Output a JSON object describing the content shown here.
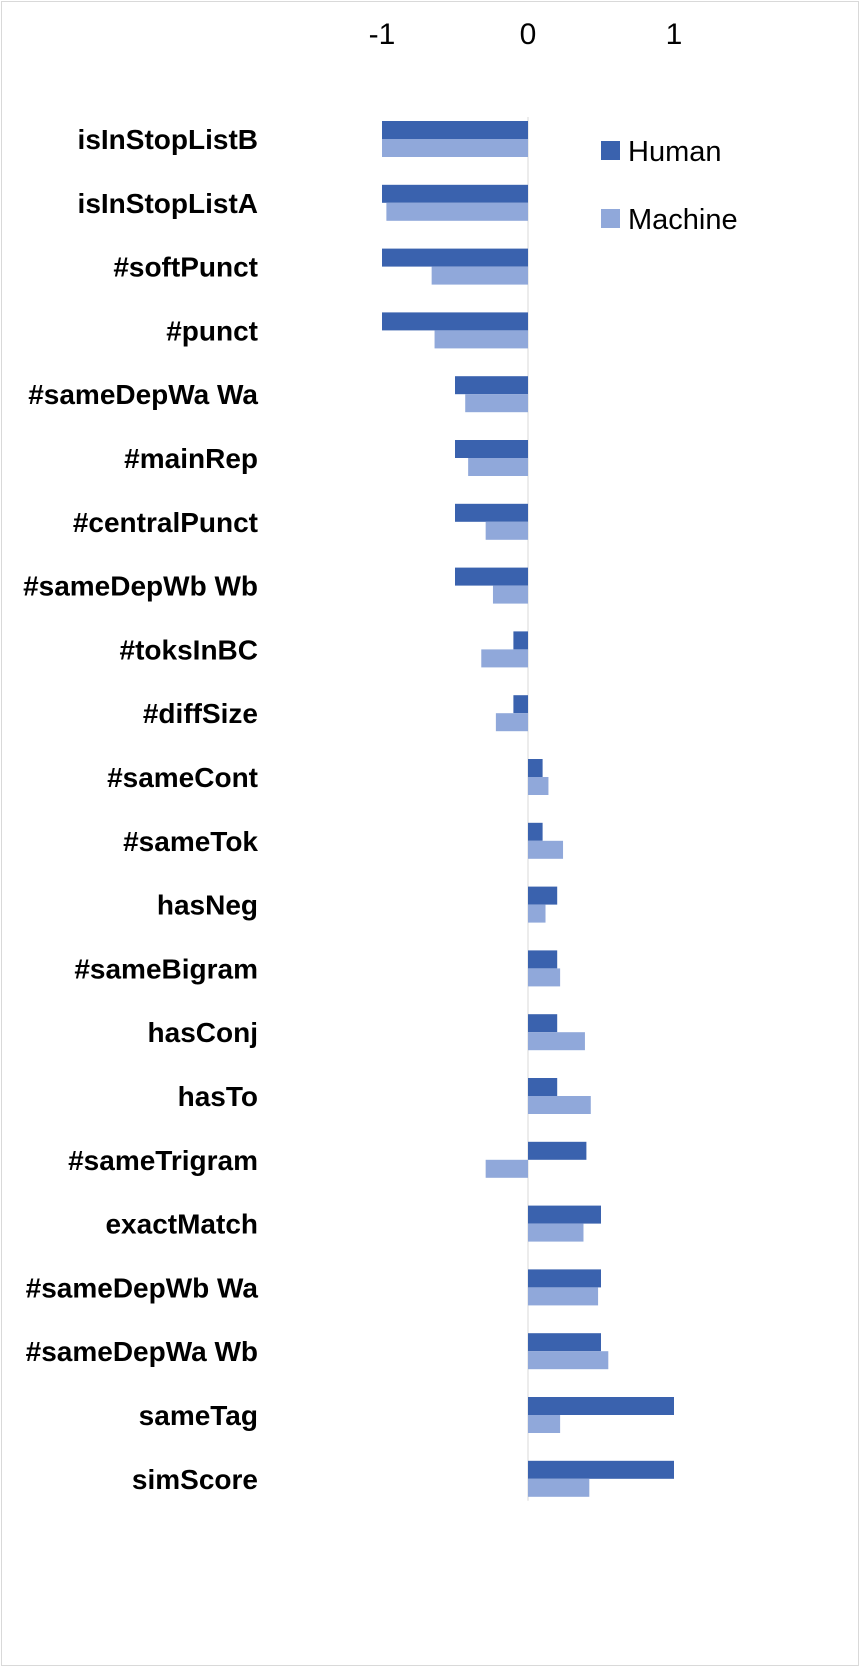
{
  "chart_data": {
    "type": "bar",
    "orientation": "horizontal",
    "xlim": [
      -1.05,
      1.05
    ],
    "xticks": [
      {
        "value": -1,
        "label": "-1"
      },
      {
        "value": 0,
        "label": "0"
      },
      {
        "value": 1,
        "label": "1"
      }
    ],
    "x_axis_position": "top",
    "grid": false,
    "legend_position": "top-right",
    "categories": [
      "isInStopListB",
      "isInStopListA",
      "#softPunct",
      "#punct",
      "#sameDepWa Wa",
      "#mainRep",
      "#centralPunct",
      "#sameDepWb Wb",
      "#toksInBC",
      "#diffSize",
      "#sameCont",
      "#sameTok",
      "hasNeg",
      "#sameBigram",
      "hasConj",
      "hasTo",
      "#sameTrigram",
      "exactMatch",
      "#sameDepWb Wa",
      "#sameDepWa Wb",
      "sameTag",
      "simScore"
    ],
    "series": [
      {
        "name": "Human",
        "color": "#3A62AE",
        "values": [
          -1.0,
          -1.0,
          -1.0,
          -1.0,
          -0.5,
          -0.5,
          -0.5,
          -0.5,
          -0.1,
          -0.1,
          0.1,
          0.1,
          0.2,
          0.2,
          0.2,
          0.2,
          0.4,
          0.5,
          0.5,
          0.5,
          1.0,
          1.0
        ]
      },
      {
        "name": "Machine",
        "color": "#90A8DA",
        "values": [
          -1.0,
          -0.97,
          -0.66,
          -0.64,
          -0.43,
          -0.41,
          -0.29,
          -0.24,
          -0.32,
          -0.22,
          0.14,
          0.24,
          0.12,
          0.22,
          0.39,
          0.43,
          -0.29,
          0.38,
          0.48,
          0.55,
          0.22,
          0.42
        ]
      }
    ]
  }
}
